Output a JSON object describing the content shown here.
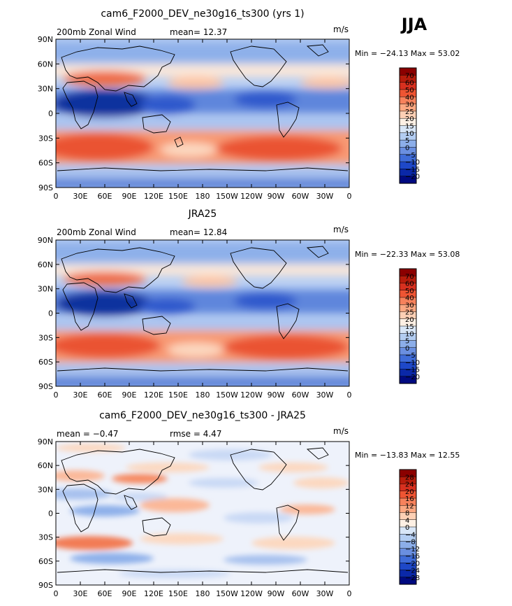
{
  "season_label": "JJA",
  "chart_data": [
    {
      "type": "heatmap",
      "title": "cam6_F2000_DEV_ne30g16_ts300 (yrs 1)",
      "left_label": "200mb  Zonal Wind",
      "center_label": "mean=   12.37",
      "units": "m/s",
      "minmax_label": "Min = −24.13 Max =   53.02",
      "x_ticks": [
        "0",
        "30E",
        "60E",
        "90E",
        "120E",
        "150E",
        "180",
        "150W",
        "120W",
        "90W",
        "60W",
        "30W",
        "0"
      ],
      "y_ticks": [
        "90N",
        "60N",
        "30N",
        "0",
        "30S",
        "60S",
        "90S"
      ],
      "colorbar_labels": [
        "70",
        "60",
        "50",
        "40",
        "30",
        "25",
        "20",
        "15",
        "10",
        "5",
        "0",
        "−5",
        "−10",
        "−15",
        "−20"
      ],
      "colorbar_colors": [
        "#8b0000",
        "#b71c0c",
        "#d7301f",
        "#ee5533",
        "#f7825c",
        "#fca882",
        "#fdd0b5",
        "#fdf0e4",
        "#d8e6f7",
        "#b3cdf2",
        "#8caee9",
        "#6a8fe0",
        "#3f6cd8",
        "#1e48c8",
        "#0a28a8",
        "#000a80"
      ],
      "colorbar_breaks": [
        70,
        60,
        50,
        40,
        30,
        25,
        20,
        15,
        10,
        5,
        0,
        -5,
        -10,
        -15,
        -20
      ]
    },
    {
      "type": "heatmap",
      "title": "JRA25",
      "left_label": "200mb  Zonal Wind",
      "center_label": "mean=   12.84",
      "units": "m/s",
      "minmax_label": "Min = −22.33 Max =   53.08",
      "x_ticks": [
        "0",
        "30E",
        "60E",
        "90E",
        "120E",
        "150E",
        "180",
        "150W",
        "120W",
        "90W",
        "60W",
        "30W",
        "0"
      ],
      "y_ticks": [
        "90N",
        "60N",
        "30N",
        "0",
        "30S",
        "60S",
        "90S"
      ],
      "colorbar_labels": [
        "70",
        "60",
        "50",
        "40",
        "30",
        "25",
        "20",
        "15",
        "10",
        "5",
        "0",
        "−5",
        "−10",
        "−15",
        "−20"
      ],
      "colorbar_colors": [
        "#8b0000",
        "#b71c0c",
        "#d7301f",
        "#ee5533",
        "#f7825c",
        "#fca882",
        "#fdd0b5",
        "#fdf0e4",
        "#d8e6f7",
        "#b3cdf2",
        "#8caee9",
        "#6a8fe0",
        "#3f6cd8",
        "#1e48c8",
        "#0a28a8",
        "#000a80"
      ],
      "colorbar_breaks": [
        70,
        60,
        50,
        40,
        30,
        25,
        20,
        15,
        10,
        5,
        0,
        -5,
        -10,
        -15,
        -20
      ]
    },
    {
      "type": "heatmap",
      "title": "cam6_F2000_DEV_ne30g16_ts300 - JRA25",
      "left_label": "mean =   −0.47",
      "center_label": "rmse =    4.47",
      "units": "m/s",
      "minmax_label": "Min = −13.83 Max =   12.55",
      "x_ticks": [
        "0",
        "30E",
        "60E",
        "90E",
        "120E",
        "150E",
        "180",
        "150W",
        "120W",
        "90W",
        "60W",
        "30W",
        "0"
      ],
      "y_ticks": [
        "90N",
        "60N",
        "30N",
        "0",
        "30S",
        "60S",
        "90S"
      ],
      "colorbar_labels": [
        "28",
        "24",
        "20",
        "16",
        "12",
        "8",
        "4",
        "0",
        "−4",
        "−8",
        "−12",
        "−16",
        "−20",
        "−24",
        "−28"
      ],
      "colorbar_colors": [
        "#8b0000",
        "#b71c0c",
        "#d7301f",
        "#ee5533",
        "#f7825c",
        "#fca882",
        "#fdd0b5",
        "#fdf0e4",
        "#d8e6f7",
        "#b3cdf2",
        "#8caee9",
        "#6a8fe0",
        "#3f6cd8",
        "#1e48c8",
        "#0a28a8",
        "#000a80"
      ],
      "colorbar_breaks": [
        28,
        24,
        20,
        16,
        12,
        8,
        4,
        0,
        -4,
        -8,
        -12,
        -16,
        -20,
        -24,
        -28
      ]
    }
  ]
}
